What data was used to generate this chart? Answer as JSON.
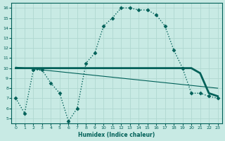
{
  "title": "",
  "xlabel": "Humidex (Indice chaleur)",
  "bg_color": "#c8eae4",
  "grid_color": "#b0d8d0",
  "line_color": "#006058",
  "xlim": [
    -0.5,
    23.5
  ],
  "ylim": [
    4.5,
    16.5
  ],
  "xticks": [
    0,
    1,
    2,
    3,
    4,
    5,
    6,
    7,
    8,
    9,
    10,
    11,
    12,
    13,
    14,
    15,
    16,
    17,
    18,
    19,
    20,
    21,
    22,
    23
  ],
  "yticks": [
    5,
    6,
    7,
    8,
    9,
    10,
    11,
    12,
    13,
    14,
    15,
    16
  ],
  "dotted_line": {
    "x": [
      0,
      1,
      2,
      3,
      4,
      5,
      6,
      7,
      8,
      9,
      10,
      11,
      12,
      13,
      14,
      15,
      16,
      17,
      18,
      19,
      20,
      21,
      22,
      23
    ],
    "y": [
      7.0,
      5.5,
      9.8,
      9.8,
      8.5,
      7.5,
      4.7,
      6.0,
      10.5,
      11.5,
      14.2,
      15.0,
      16.0,
      16.0,
      15.8,
      15.8,
      15.3,
      14.2,
      11.8,
      10.0,
      7.5,
      7.5,
      7.2,
      7.0
    ]
  },
  "solid_thick_line": {
    "x": [
      0,
      1,
      2,
      3,
      4,
      5,
      6,
      7,
      8,
      9,
      10,
      11,
      12,
      13,
      14,
      15,
      16,
      17,
      18,
      19,
      20,
      21,
      22,
      23
    ],
    "y": [
      10.0,
      10.0,
      10.0,
      10.0,
      10.0,
      10.0,
      10.0,
      10.0,
      10.0,
      10.0,
      10.0,
      10.0,
      10.0,
      10.0,
      10.0,
      10.0,
      10.0,
      10.0,
      10.0,
      10.0,
      10.0,
      9.5,
      7.5,
      7.2
    ]
  },
  "regression_line": {
    "x": [
      0,
      23
    ],
    "y": [
      10.1,
      8.0
    ]
  }
}
